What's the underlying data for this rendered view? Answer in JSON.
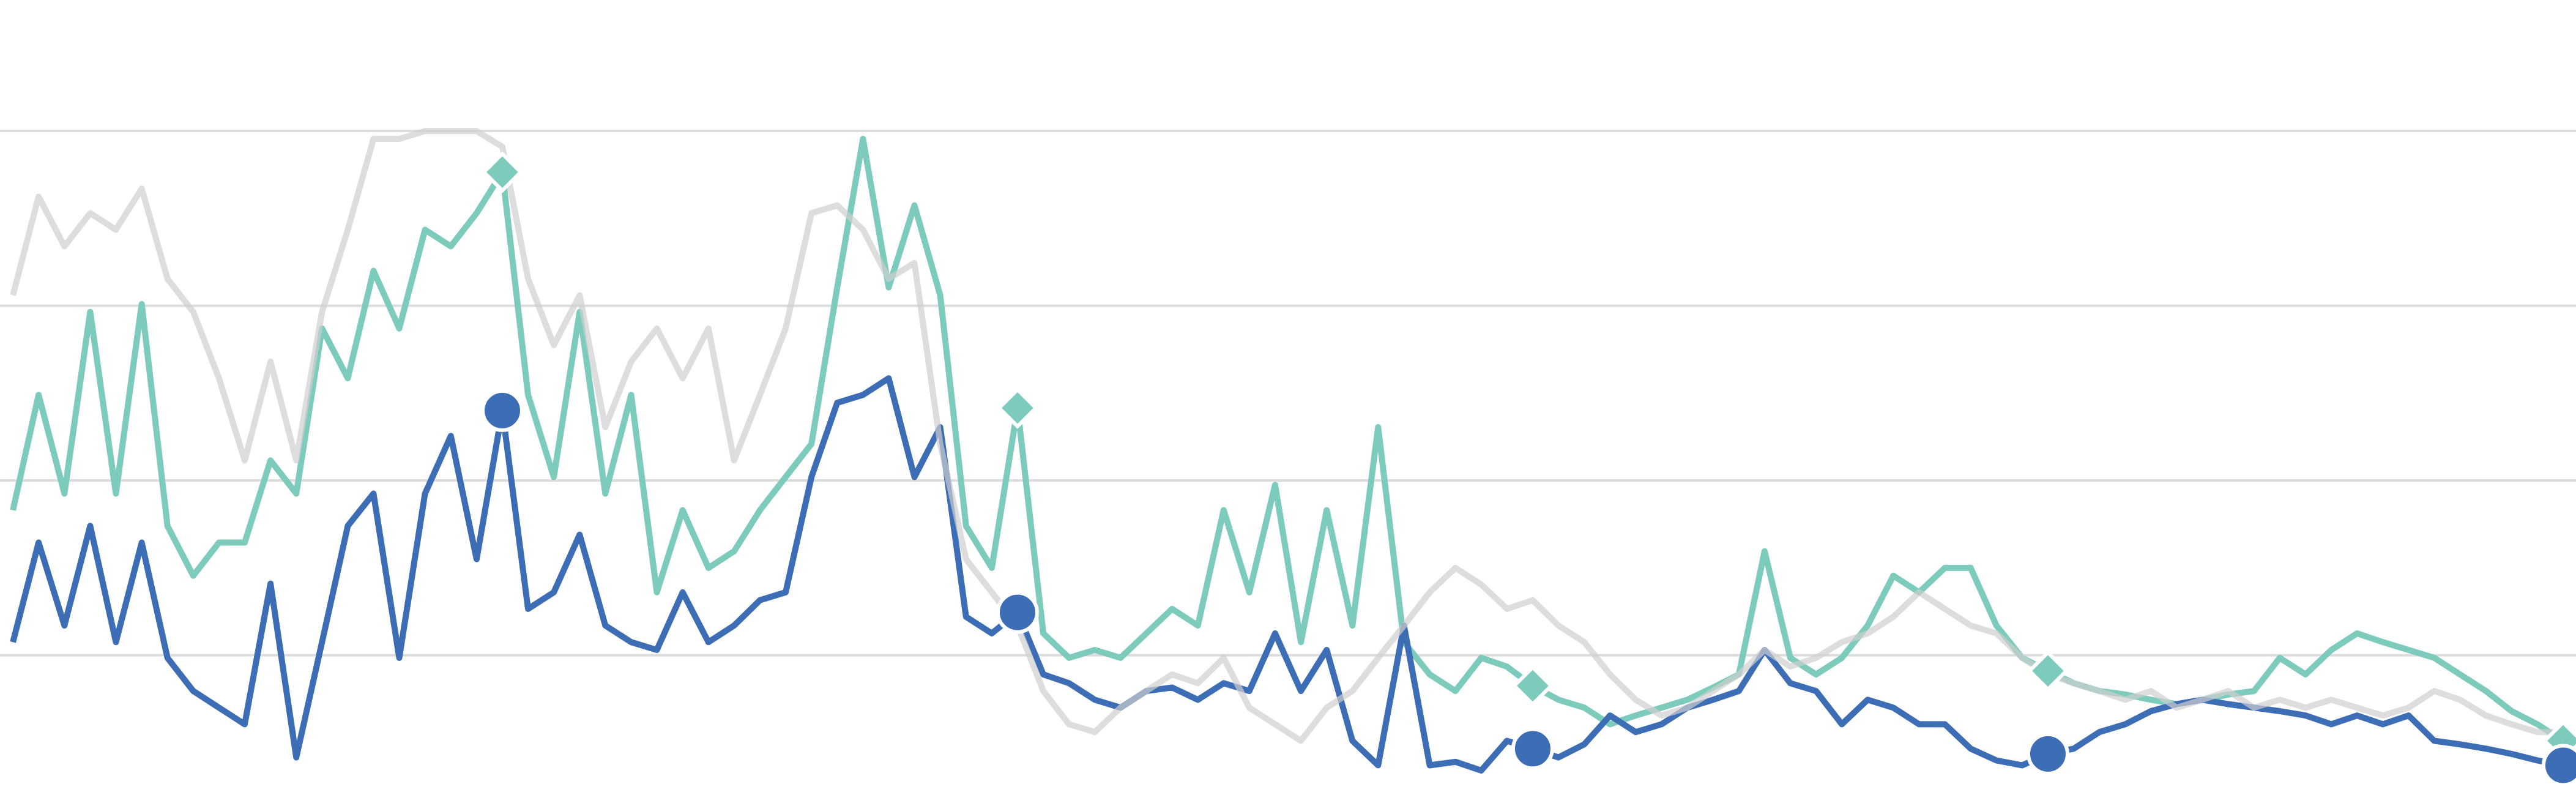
{
  "chart_data": {
    "type": "line",
    "x": [
      0,
      1,
      2,
      3,
      4,
      5,
      6,
      7,
      8,
      9,
      10,
      11,
      12,
      13,
      14,
      15,
      16,
      17,
      18,
      19,
      20,
      21,
      22,
      23,
      24,
      25,
      26,
      27,
      28,
      29,
      30,
      31,
      32,
      33,
      34,
      35,
      36,
      37,
      38,
      39,
      40,
      41,
      42,
      43,
      44,
      45,
      46,
      47,
      48,
      49,
      50,
      51,
      52,
      53,
      54,
      55,
      56,
      57,
      58,
      59,
      60,
      61,
      62,
      63,
      64,
      65,
      66,
      67,
      68,
      69,
      70,
      71,
      72,
      73,
      74,
      75,
      76,
      77,
      78,
      79,
      80,
      81,
      82,
      83,
      84,
      85,
      86,
      87,
      88,
      89,
      90,
      91,
      92,
      93,
      94,
      95,
      96,
      97,
      98,
      99
    ],
    "xlim": [
      -0.5,
      99.5
    ],
    "ylim": [
      4,
      95
    ],
    "yticks": [
      20,
      40,
      60,
      80
    ],
    "grid": true,
    "series": [
      {
        "color": "#7ccbbc",
        "marker": "diamond",
        "marker_indices": [
          19,
          39,
          59,
          79,
          99
        ],
        "values": [
          36.6,
          49.8,
          38.5,
          59.3,
          38.5,
          60.2,
          34.8,
          29.1,
          32.9,
          32.9,
          42.3,
          38.5,
          57.4,
          51.7,
          64,
          57.4,
          68.7,
          66.8,
          70.6,
          75.3,
          49.8,
          40.4,
          59.3,
          38.5,
          49.8,
          27.2,
          36.6,
          30,
          31.9,
          36.6,
          40.4,
          44.2,
          62.1,
          79.1,
          62.1,
          71.5,
          61.2,
          34.8,
          30,
          48.3,
          22.5,
          19.7,
          20.6,
          19.7,
          22.5,
          25.3,
          23.4,
          36.6,
          27.2,
          39.5,
          21.5,
          36.6,
          23.4,
          46.1,
          21.5,
          17.8,
          15.9,
          19.7,
          18.7,
          16.5,
          14.9,
          14,
          12.1,
          13.1,
          14,
          14.9,
          16.3,
          17.8,
          31.9,
          19.7,
          17.8,
          19.7,
          23.4,
          29.1,
          27.2,
          30,
          30,
          23.4,
          19.7,
          18.2,
          16.8,
          15.9,
          15.5,
          14.9,
          14.4,
          14.9,
          15.5,
          15.9,
          19.7,
          17.8,
          20.6,
          22.5,
          21.5,
          20.6,
          19.7,
          17.8,
          15.9,
          13.6,
          12.1,
          10.2
        ]
      },
      {
        "color": "#3d6db5",
        "marker": "circle",
        "marker_indices": [
          19,
          39,
          59,
          79,
          99
        ],
        "values": [
          21.5,
          32.9,
          23.4,
          34.8,
          21.5,
          32.9,
          19.7,
          15.9,
          14,
          12.1,
          28.2,
          8.3,
          21.5,
          34.8,
          38.5,
          19.7,
          38.5,
          45.1,
          31,
          48,
          25.3,
          27.2,
          33.8,
          23.4,
          21.5,
          20.6,
          27.2,
          21.5,
          23.4,
          26.3,
          27.2,
          40.4,
          48.9,
          49.8,
          51.7,
          40.4,
          46.1,
          24.4,
          22.5,
          24.9,
          17.8,
          16.8,
          14.9,
          14,
          15.9,
          16.3,
          14.9,
          16.8,
          15.9,
          22.5,
          15.9,
          20.6,
          10.2,
          7.4,
          23.4,
          7.4,
          7.8,
          6.8,
          10.2,
          9.3,
          8.3,
          9.8,
          13.1,
          11.2,
          12.1,
          14,
          14.9,
          15.9,
          20.6,
          16.8,
          15.9,
          12.1,
          14.9,
          14,
          12.1,
          12.1,
          9.3,
          7.96,
          7.4,
          8.7,
          9.3,
          11.2,
          12.1,
          13.6,
          14.4,
          14.9,
          14.4,
          14,
          13.6,
          13.1,
          12.1,
          13.1,
          12.1,
          13.1,
          10.2,
          9.8,
          9.3,
          8.7,
          7.96,
          7.4
        ]
      },
      {
        "color": "#cfcfcf",
        "values": [
          61.2,
          72.5,
          66.8,
          70.6,
          68.7,
          73.4,
          63.1,
          59.3,
          51.7,
          42.3,
          53.6,
          42.3,
          59.3,
          68.7,
          79.1,
          79.1,
          80,
          80,
          80,
          78.2,
          63.1,
          55.5,
          61.2,
          46.1,
          53.6,
          57.4,
          51.7,
          57.4,
          42.3,
          49.8,
          57.4,
          70.6,
          71.5,
          68.7,
          63.1,
          64.9,
          44.2,
          31,
          27.2,
          23.4,
          15.9,
          12.1,
          11.2,
          14,
          15.9,
          17.8,
          16.8,
          19.7,
          14,
          12.1,
          10.2,
          14,
          15.9,
          19.7,
          23.4,
          27.2,
          30,
          28.1,
          25.3,
          26.3,
          23.4,
          21.5,
          17.8,
          14.9,
          13.1,
          14,
          15.9,
          17.8,
          20.6,
          18.7,
          19.7,
          21.5,
          22.5,
          24.4,
          27.2,
          25.3,
          23.4,
          22.5,
          19.7,
          17.8,
          16.8,
          15.9,
          14.9,
          15.9,
          14,
          14.9,
          15.9,
          14,
          14.9,
          14,
          14.9,
          14,
          13.1,
          14,
          15.9,
          14.9,
          13.1,
          12.1,
          11.2,
          11.2
        ]
      }
    ]
  }
}
